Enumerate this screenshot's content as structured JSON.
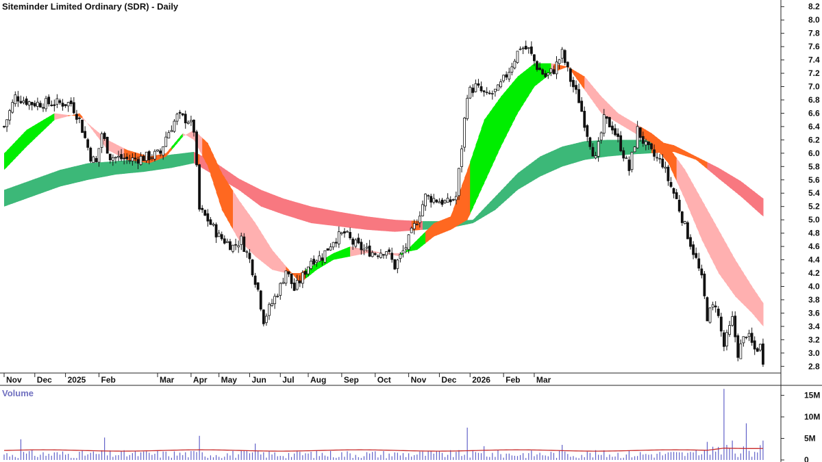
{
  "chart_data": {
    "type": "candlestick",
    "title": "Siteminder Limited Ordinary (SDR) - Daily",
    "price_axis": {
      "ylim": [
        2.7,
        8.3
      ],
      "ticks": [
        2.8,
        3.0,
        3.2,
        3.4,
        3.6,
        3.8,
        4.0,
        4.2,
        4.4,
        4.6,
        4.8,
        5.0,
        5.2,
        5.4,
        5.6,
        5.8,
        6.0,
        6.2,
        6.4,
        6.6,
        6.8,
        7.0,
        7.2,
        7.4,
        7.6,
        7.8,
        8.0,
        8.2
      ],
      "tick_labels": [
        "2.8",
        "3.0",
        "3.2",
        "3.4",
        "3.6",
        "3.8",
        "4.0",
        "4.2",
        "4.4",
        "4.6",
        "4.8",
        "5.0",
        "5.2",
        "5.4",
        "5.6",
        "5.8",
        "6.0",
        "6.2",
        "6.4",
        "6.6",
        "6.8",
        "7.0",
        "7.2",
        "7.4",
        "7.6",
        "7.8",
        "8.0",
        "8.2"
      ]
    },
    "time_axis": {
      "months": [
        "Nov",
        "Dec",
        "2025",
        "Feb",
        "Mar",
        "Apr",
        "May",
        "Jun",
        "Jul",
        "Aug",
        "Sep",
        "Oct",
        "Nov",
        "Dec",
        "2026",
        "Feb",
        "Mar"
      ],
      "month_index": [
        11,
        11,
        12,
        21,
        12,
        10,
        11,
        11,
        10,
        12,
        12,
        12,
        11,
        11,
        12,
        11,
        10
      ]
    },
    "price_path": [
      {
        "t": 0,
        "p": 6.4
      },
      {
        "t": 4,
        "p": 6.85
      },
      {
        "t": 10,
        "p": 6.75
      },
      {
        "t": 20,
        "p": 6.75
      },
      {
        "t": 24,
        "p": 6.75
      },
      {
        "t": 27,
        "p": 6.5
      },
      {
        "t": 31,
        "p": 5.95
      },
      {
        "t": 33,
        "p": 5.85
      },
      {
        "t": 35,
        "p": 6.3
      },
      {
        "t": 38,
        "p": 5.95
      },
      {
        "t": 45,
        "p": 5.9
      },
      {
        "t": 52,
        "p": 5.95
      },
      {
        "t": 56,
        "p": 6.0
      },
      {
        "t": 58,
        "p": 6.25
      },
      {
        "t": 62,
        "p": 6.55
      },
      {
        "t": 66,
        "p": 6.5
      },
      {
        "t": 68,
        "p": 6.35
      },
      {
        "t": 70,
        "p": 5.15
      },
      {
        "t": 73,
        "p": 5.0
      },
      {
        "t": 77,
        "p": 4.75
      },
      {
        "t": 82,
        "p": 4.6
      },
      {
        "t": 85,
        "p": 4.7
      },
      {
        "t": 88,
        "p": 4.4
      },
      {
        "t": 91,
        "p": 3.95
      },
      {
        "t": 93,
        "p": 3.5
      },
      {
        "t": 96,
        "p": 3.75
      },
      {
        "t": 99,
        "p": 4.0
      },
      {
        "t": 101,
        "p": 4.25
      },
      {
        "t": 104,
        "p": 3.95
      },
      {
        "t": 107,
        "p": 4.15
      },
      {
        "t": 110,
        "p": 4.4
      },
      {
        "t": 114,
        "p": 4.45
      },
      {
        "t": 118,
        "p": 4.7
      },
      {
        "t": 122,
        "p": 4.8
      },
      {
        "t": 125,
        "p": 4.65
      },
      {
        "t": 129,
        "p": 4.55
      },
      {
        "t": 133,
        "p": 4.5
      },
      {
        "t": 137,
        "p": 4.55
      },
      {
        "t": 140,
        "p": 4.3
      },
      {
        "t": 144,
        "p": 4.6
      },
      {
        "t": 148,
        "p": 5.0
      },
      {
        "t": 151,
        "p": 5.35
      },
      {
        "t": 155,
        "p": 5.3
      },
      {
        "t": 159,
        "p": 5.25
      },
      {
        "t": 162,
        "p": 5.35
      },
      {
        "t": 164,
        "p": 6.1
      },
      {
        "t": 166,
        "p": 6.9
      },
      {
        "t": 169,
        "p": 7.0
      },
      {
        "t": 173,
        "p": 6.85
      },
      {
        "t": 177,
        "p": 6.95
      },
      {
        "t": 181,
        "p": 7.25
      },
      {
        "t": 185,
        "p": 7.6
      },
      {
        "t": 188,
        "p": 7.55
      },
      {
        "t": 191,
        "p": 7.3
      },
      {
        "t": 194,
        "p": 7.15
      },
      {
        "t": 197,
        "p": 7.25
      },
      {
        "t": 200,
        "p": 7.5
      },
      {
        "t": 203,
        "p": 7.1
      },
      {
        "t": 206,
        "p": 6.8
      },
      {
        "t": 209,
        "p": 6.3
      },
      {
        "t": 212,
        "p": 5.9
      },
      {
        "t": 215,
        "p": 6.5
      },
      {
        "t": 218,
        "p": 6.4
      },
      {
        "t": 221,
        "p": 6.1
      },
      {
        "t": 224,
        "p": 5.75
      },
      {
        "t": 227,
        "p": 6.35
      },
      {
        "t": 230,
        "p": 6.1
      },
      {
        "t": 233,
        "p": 5.95
      },
      {
        "t": 236,
        "p": 5.85
      },
      {
        "t": 238,
        "p": 5.6
      },
      {
        "t": 241,
        "p": 5.3
      },
      {
        "t": 244,
        "p": 4.9
      },
      {
        "t": 246,
        "p": 4.65
      },
      {
        "t": 248,
        "p": 4.4
      },
      {
        "t": 250,
        "p": 4.1
      },
      {
        "t": 252,
        "p": 3.55
      },
      {
        "t": 255,
        "p": 3.75
      },
      {
        "t": 258,
        "p": 3.1
      },
      {
        "t": 261,
        "p": 3.5
      },
      {
        "t": 263,
        "p": 3.0
      },
      {
        "t": 266,
        "p": 3.3
      },
      {
        "t": 269,
        "p": 3.05
      },
      {
        "t": 271,
        "p": 3.1
      },
      {
        "t": 272,
        "p": 2.9
      }
    ],
    "guppy_short_band": {
      "colors": {
        "up": "#00ee00",
        "down": "#ffb0b0",
        "cross_down": "#ff6820",
        "cross_up": "#ff6820"
      },
      "points": [
        {
          "t": 0,
          "top": 6.0,
          "bot": 5.75
        },
        {
          "t": 8,
          "top": 6.35,
          "bot": 6.1
        },
        {
          "t": 18,
          "top": 6.6,
          "bot": 6.5
        },
        {
          "t": 27,
          "top": 6.55,
          "bot": 6.6
        },
        {
          "t": 37,
          "top": 6.2,
          "bot": 6.05
        },
        {
          "t": 44,
          "top": 6.05,
          "bot": 5.9
        },
        {
          "t": 52,
          "top": 5.95,
          "bot": 5.85
        },
        {
          "t": 58,
          "top": 6.0,
          "bot": 5.95
        },
        {
          "t": 64,
          "top": 6.3,
          "bot": 6.25
        },
        {
          "t": 68,
          "top": 6.2,
          "bot": 6.35
        },
        {
          "t": 73,
          "top": 5.8,
          "bot": 6.15
        },
        {
          "t": 78,
          "top": 5.15,
          "bot": 5.7
        },
        {
          "t": 84,
          "top": 4.7,
          "bot": 5.3
        },
        {
          "t": 90,
          "top": 4.45,
          "bot": 4.95
        },
        {
          "t": 96,
          "top": 4.25,
          "bot": 4.55
        },
        {
          "t": 101,
          "top": 4.2,
          "bot": 4.3
        },
        {
          "t": 106,
          "top": 4.2,
          "bot": 4.05
        },
        {
          "t": 112,
          "top": 4.35,
          "bot": 4.25
        },
        {
          "t": 118,
          "top": 4.5,
          "bot": 4.4
        },
        {
          "t": 124,
          "top": 4.6,
          "bot": 4.45
        },
        {
          "t": 130,
          "top": 4.55,
          "bot": 4.5
        },
        {
          "t": 136,
          "top": 4.5,
          "bot": 4.5
        },
        {
          "t": 142,
          "top": 4.45,
          "bot": 4.5
        },
        {
          "t": 148,
          "top": 4.7,
          "bot": 4.55
        },
        {
          "t": 154,
          "top": 4.95,
          "bot": 4.75
        },
        {
          "t": 160,
          "top": 5.05,
          "bot": 4.85
        },
        {
          "t": 166,
          "top": 5.75,
          "bot": 5.0
        },
        {
          "t": 172,
          "top": 6.5,
          "bot": 5.55
        },
        {
          "t": 178,
          "top": 6.85,
          "bot": 6.1
        },
        {
          "t": 184,
          "top": 7.15,
          "bot": 6.6
        },
        {
          "t": 190,
          "top": 7.35,
          "bot": 7.0
        },
        {
          "t": 196,
          "top": 7.35,
          "bot": 7.2
        },
        {
          "t": 202,
          "top": 7.3,
          "bot": 7.3
        },
        {
          "t": 208,
          "top": 6.95,
          "bot": 7.15
        },
        {
          "t": 214,
          "top": 6.6,
          "bot": 6.85
        },
        {
          "t": 220,
          "top": 6.45,
          "bot": 6.6
        },
        {
          "t": 226,
          "top": 6.3,
          "bot": 6.45
        },
        {
          "t": 232,
          "top": 6.15,
          "bot": 6.3
        },
        {
          "t": 238,
          "top": 5.85,
          "bot": 6.1
        },
        {
          "t": 244,
          "top": 5.3,
          "bot": 5.75
        },
        {
          "t": 250,
          "top": 4.7,
          "bot": 5.3
        },
        {
          "t": 256,
          "top": 4.2,
          "bot": 4.85
        },
        {
          "t": 262,
          "top": 3.85,
          "bot": 4.4
        },
        {
          "t": 268,
          "top": 3.6,
          "bot": 4.0
        },
        {
          "t": 272,
          "top": 3.4,
          "bot": 3.75
        }
      ]
    },
    "guppy_long_band": {
      "colors": {
        "up": "#3cb878",
        "down": "#f87880",
        "cross": "#ff6820"
      },
      "points": [
        {
          "t": 0,
          "top": 5.45,
          "bot": 5.2
        },
        {
          "t": 10,
          "top": 5.6,
          "bot": 5.35
        },
        {
          "t": 20,
          "top": 5.75,
          "bot": 5.5
        },
        {
          "t": 30,
          "top": 5.85,
          "bot": 5.6
        },
        {
          "t": 40,
          "top": 5.88,
          "bot": 5.68
        },
        {
          "t": 50,
          "top": 5.92,
          "bot": 5.72
        },
        {
          "t": 60,
          "top": 5.98,
          "bot": 5.78
        },
        {
          "t": 68,
          "top": 6.02,
          "bot": 5.85
        },
        {
          "t": 76,
          "top": 5.85,
          "bot": 5.65
        },
        {
          "t": 84,
          "top": 5.62,
          "bot": 5.45
        },
        {
          "t": 92,
          "top": 5.45,
          "bot": 5.2
        },
        {
          "t": 100,
          "top": 5.32,
          "bot": 5.08
        },
        {
          "t": 110,
          "top": 5.2,
          "bot": 4.95
        },
        {
          "t": 120,
          "top": 5.12,
          "bot": 4.9
        },
        {
          "t": 130,
          "top": 5.05,
          "bot": 4.85
        },
        {
          "t": 140,
          "top": 5.0,
          "bot": 4.82
        },
        {
          "t": 150,
          "top": 4.98,
          "bot": 4.85
        },
        {
          "t": 160,
          "top": 4.98,
          "bot": 4.88
        },
        {
          "t": 168,
          "top": 5.0,
          "bot": 4.95
        },
        {
          "t": 176,
          "top": 5.35,
          "bot": 5.15
        },
        {
          "t": 184,
          "top": 5.7,
          "bot": 5.45
        },
        {
          "t": 192,
          "top": 5.95,
          "bot": 5.65
        },
        {
          "t": 200,
          "top": 6.1,
          "bot": 5.8
        },
        {
          "t": 208,
          "top": 6.18,
          "bot": 5.9
        },
        {
          "t": 216,
          "top": 6.2,
          "bot": 5.95
        },
        {
          "t": 224,
          "top": 6.2,
          "bot": 5.98
        },
        {
          "t": 232,
          "top": 6.2,
          "bot": 6.0
        },
        {
          "t": 240,
          "top": 6.12,
          "bot": 6.02
        },
        {
          "t": 248,
          "top": 5.95,
          "bot": 5.9
        },
        {
          "t": 256,
          "top": 5.78,
          "bot": 5.62
        },
        {
          "t": 264,
          "top": 5.58,
          "bot": 5.35
        },
        {
          "t": 272,
          "top": 5.32,
          "bot": 5.05
        }
      ]
    },
    "volume_axis": {
      "ylim": [
        0,
        17
      ],
      "ticks": [
        0,
        5,
        10,
        15
      ],
      "tick_labels": [
        "0",
        "5M",
        "10M",
        "15M"
      ]
    },
    "volume_title": "Volume",
    "volume_spikes": [
      {
        "t": 6,
        "v": 4.8
      },
      {
        "t": 36,
        "v": 5.2
      },
      {
        "t": 70,
        "v": 5.6
      },
      {
        "t": 90,
        "v": 3.8
      },
      {
        "t": 166,
        "v": 7.5
      },
      {
        "t": 172,
        "v": 3.2
      },
      {
        "t": 200,
        "v": 3.5
      },
      {
        "t": 252,
        "v": 4.2
      },
      {
        "t": 258,
        "v": 16.5
      },
      {
        "t": 261,
        "v": 4.5
      },
      {
        "t": 266,
        "v": 8.5
      },
      {
        "t": 272,
        "v": 4.5
      }
    ],
    "volume_avg": 2.2,
    "volume_color": "#6060c8",
    "volume_avg_color": "#c82828"
  }
}
